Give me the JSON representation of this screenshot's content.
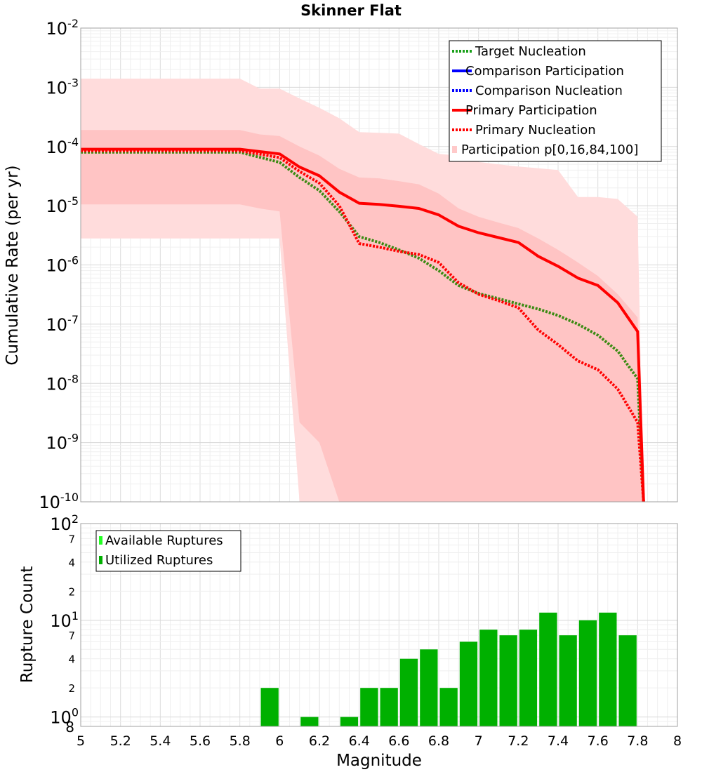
{
  "chart_data": [
    {
      "type": "line",
      "title": "Skinner Flat",
      "xlabel": "Magnitude",
      "ylabel": "Cumulative Rate (per yr)",
      "xlim": [
        5,
        8
      ],
      "ylim": [
        1e-10,
        0.01
      ],
      "yscale": "log",
      "grid": true,
      "legend_position": "top-right",
      "y_ticks": [
        {
          "base": "10",
          "exp": "-2"
        },
        {
          "base": "10",
          "exp": "-3"
        },
        {
          "base": "10",
          "exp": "-4"
        },
        {
          "base": "10",
          "exp": "-5"
        },
        {
          "base": "10",
          "exp": "-6"
        },
        {
          "base": "10",
          "exp": "-7"
        },
        {
          "base": "10",
          "exp": "-8"
        },
        {
          "base": "10",
          "exp": "-9"
        },
        {
          "base": "10",
          "exp": "-10"
        }
      ],
      "legend": [
        {
          "label": "Target Nucleation",
          "color": "#1aa01a",
          "style": "dotted"
        },
        {
          "label": "Comparison Participation",
          "color": "#0000ff",
          "style": "solid"
        },
        {
          "label": "Comparison Nucleation",
          "color": "#0000ff",
          "style": "dotted"
        },
        {
          "label": "Primary Participation",
          "color": "#ff0000",
          "style": "solid"
        },
        {
          "label": "Primary Nucleation",
          "color": "#ff0000",
          "style": "dotted"
        },
        {
          "label": "Participation p[0,16,84,100]",
          "color": "#ffc9c9",
          "style": "fill"
        }
      ],
      "series": [
        {
          "name": "Target Nucleation",
          "color": "#3a8a12",
          "style": "dotted",
          "x": [
            5.0,
            5.8,
            6.0,
            6.1,
            6.2,
            6.3,
            6.4,
            6.5,
            6.6,
            6.7,
            6.8,
            6.9,
            7.0,
            7.1,
            7.2,
            7.3,
            7.4,
            7.5,
            7.6,
            7.7,
            7.8,
            7.83
          ],
          "y": [
            8e-05,
            8e-05,
            5.4e-05,
            3e-05,
            1.8e-05,
            8e-06,
            3e-06,
            2.4e-06,
            1.8e-06,
            1.3e-06,
            8e-07,
            4.5e-07,
            3.3e-07,
            2.7e-07,
            2.2e-07,
            1.8e-07,
            1.4e-07,
            1e-07,
            6.5e-08,
            3.5e-08,
            1.2e-08,
            1e-10
          ]
        },
        {
          "name": "Primary Participation",
          "color": "#ff0000",
          "style": "solid",
          "x": [
            5.0,
            5.8,
            6.0,
            6.1,
            6.2,
            6.3,
            6.4,
            6.5,
            6.6,
            6.7,
            6.8,
            6.9,
            7.0,
            7.1,
            7.2,
            7.3,
            7.4,
            7.5,
            7.6,
            7.7,
            7.8,
            7.83
          ],
          "y": [
            9e-05,
            9e-05,
            7.5e-05,
            4.5e-05,
            3.2e-05,
            1.7e-05,
            1.1e-05,
            1.05e-05,
            9.8e-06,
            9e-06,
            7e-06,
            4.5e-06,
            3.5e-06,
            2.9e-06,
            2.4e-06,
            1.4e-06,
            9.5e-07,
            6e-07,
            4.5e-07,
            2.3e-07,
            7.5e-08,
            1e-10
          ]
        },
        {
          "name": "Primary Nucleation",
          "color": "#ff0000",
          "style": "dotted",
          "x": [
            5.0,
            5.8,
            6.0,
            6.1,
            6.2,
            6.3,
            6.4,
            6.5,
            6.6,
            6.7,
            6.8,
            6.9,
            7.0,
            7.1,
            7.2,
            7.3,
            7.4,
            7.5,
            7.6,
            7.7,
            7.8,
            7.83
          ],
          "y": [
            8.5e-05,
            8.5e-05,
            6.5e-05,
            3.8e-05,
            2.4e-05,
            1e-05,
            2.3e-06,
            2e-06,
            1.7e-06,
            1.5e-06,
            1.1e-06,
            5e-07,
            3.2e-07,
            2.5e-07,
            1.9e-07,
            8e-08,
            4.5e-08,
            2.4e-08,
            1.7e-08,
            8e-09,
            2.2e-09,
            1e-10
          ]
        }
      ],
      "bands": [
        {
          "name": "p0-p100",
          "color": "#ffdcdc",
          "x": [
            5.0,
            5.8,
            5.9,
            6.0,
            6.1,
            6.2,
            6.3,
            6.4,
            6.5,
            6.6,
            6.7,
            6.8,
            6.9,
            7.0,
            7.1,
            7.2,
            7.3,
            7.4,
            7.5,
            7.6,
            7.7,
            7.8,
            7.83
          ],
          "upper": [
            0.0014,
            0.0014,
            0.00095,
            0.00095,
            0.00065,
            0.00045,
            0.0003,
            0.000175,
            0.00017,
            0.000165,
            0.00011,
            7.5e-05,
            7e-05,
            5.5e-05,
            5e-05,
            4.6e-05,
            4.3e-05,
            4e-05,
            1.4e-05,
            1.4e-05,
            1.3e-05,
            6.5e-06,
            1e-10
          ],
          "lower": [
            2.8e-06,
            2.8e-06,
            2.8e-06,
            2.8e-06,
            1e-10,
            1e-10,
            1e-10,
            1e-10,
            1e-10,
            1e-10,
            1e-10,
            1e-10,
            1e-10,
            1e-10,
            1e-10,
            1e-10,
            1e-10,
            1e-10,
            1e-10,
            1e-10,
            1e-10,
            1e-10,
            1e-10
          ]
        },
        {
          "name": "p16-p84",
          "color": "#ffc4c4",
          "x": [
            5.0,
            5.8,
            5.9,
            6.0,
            6.1,
            6.2,
            6.3,
            6.4,
            6.5,
            6.6,
            6.7,
            6.8,
            6.9,
            7.0,
            7.1,
            7.2,
            7.3,
            7.4,
            7.5,
            7.6,
            7.7,
            7.8,
            7.83
          ],
          "upper": [
            0.00019,
            0.00019,
            0.00016,
            0.00015,
            0.0001,
            7e-05,
            4.2e-05,
            3e-05,
            2.9e-05,
            2.6e-05,
            2.3e-05,
            1.6e-05,
            9e-06,
            6.5e-06,
            5.2e-06,
            4.2e-06,
            2.8e-06,
            1.8e-06,
            1.1e-06,
            6.5e-07,
            3.2e-07,
            1.3e-07,
            1e-10
          ],
          "lower": [
            1.05e-05,
            1.05e-05,
            9e-06,
            8e-06,
            2.2e-09,
            1e-09,
            1e-10,
            1e-10,
            1e-10,
            1e-10,
            1e-10,
            1e-10,
            1e-10,
            1e-10,
            1e-10,
            1e-10,
            1e-10,
            1e-10,
            1e-10,
            1e-10,
            1e-10,
            1e-10,
            1e-10
          ]
        }
      ]
    },
    {
      "type": "bar",
      "xlabel": "Magnitude",
      "ylabel": "Rupture Count",
      "xlim": [
        5,
        8
      ],
      "ylim": [
        0.8,
        100
      ],
      "yscale": "log",
      "grid": true,
      "legend_position": "top-left",
      "x_ticks": [
        "5",
        "5.2",
        "5.4",
        "5.6",
        "5.8",
        "6",
        "6.2",
        "6.4",
        "6.6",
        "6.8",
        "7",
        "7.2",
        "7.4",
        "7.6",
        "7.8",
        "8"
      ],
      "y_ticks": [
        {
          "label": "10",
          "exp": "2",
          "value": 100
        },
        {
          "label": "7",
          "exp": "",
          "value": 70
        },
        {
          "label": "4",
          "exp": "",
          "value": 40
        },
        {
          "label": "2",
          "exp": "",
          "value": 20
        },
        {
          "label": "10",
          "exp": "1",
          "value": 10
        },
        {
          "label": "7",
          "exp": "",
          "value": 7
        },
        {
          "label": "4",
          "exp": "",
          "value": 4
        },
        {
          "label": "2",
          "exp": "",
          "value": 2
        },
        {
          "label": "10",
          "exp": "0",
          "value": 1
        },
        {
          "label": "8",
          "exp": "",
          "value": 0.8
        }
      ],
      "legend": [
        {
          "label": "Available Ruptures",
          "color": "#22ff22"
        },
        {
          "label": "Utilized Ruptures",
          "color": "#00b000"
        }
      ],
      "bar_color": "#00b000",
      "bin_width": 0.1,
      "x": [
        5.95,
        6.15,
        6.35,
        6.45,
        6.55,
        6.65,
        6.75,
        6.85,
        6.95,
        7.05,
        7.15,
        7.25,
        7.35,
        7.45,
        7.55,
        7.65,
        7.75
      ],
      "values": [
        2,
        1,
        1,
        2,
        2,
        4,
        5,
        2,
        6,
        8,
        7,
        8,
        12,
        7,
        10,
        12,
        7
      ]
    }
  ]
}
